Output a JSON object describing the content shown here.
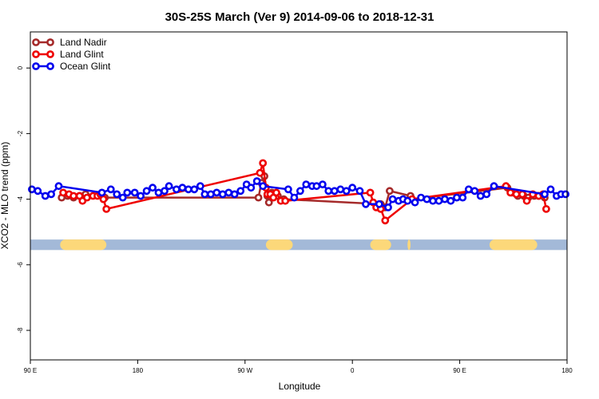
{
  "chart_data": {
    "type": "line",
    "title": "30S-25S March (Ver 9)   2014-09-06 to 2018-12-31",
    "xlabel": "Longitude",
    "ylabel": "XCO2 - MLO trend (ppm)",
    "xlim": [
      90,
      450
    ],
    "ylim": [
      -8.9,
      1.1
    ],
    "x_ticks": [
      {
        "value": 90,
        "label": "90 E"
      },
      {
        "value": 162,
        "label": "180"
      },
      {
        "value": 234,
        "label": "90 W"
      },
      {
        "value": 306,
        "label": "0"
      },
      {
        "value": 378,
        "label": "90 E"
      },
      {
        "value": 450,
        "label": "180"
      }
    ],
    "y_ticks": [
      {
        "value": 0,
        "label": "0"
      },
      {
        "value": -2,
        "label": "-2"
      },
      {
        "value": -4,
        "label": "-4"
      },
      {
        "value": -6,
        "label": "-6"
      },
      {
        "value": -8,
        "label": "-8"
      }
    ],
    "grid": false,
    "legend_position": "top-left",
    "land_band": {
      "y_range": [
        -5.55,
        -5.23
      ],
      "ocean_color": "#a3b9d8",
      "land_color": "#fcd87a",
      "land_segments": [
        [
          110,
          141
        ],
        [
          248,
          266
        ],
        [
          318,
          332
        ],
        [
          343,
          345
        ],
        [
          398,
          430
        ]
      ]
    },
    "series": [
      {
        "name": "Land Nadir",
        "color": "#a52a2a",
        "points": [
          [
            111,
            -3.95
          ],
          [
            115,
            -3.9
          ],
          [
            119,
            -3.95
          ],
          [
            123,
            -3.9
          ],
          [
            127,
            -3.85
          ],
          [
            140,
            -3.95
          ],
          [
            243,
            -3.95
          ],
          [
            245,
            -3.5
          ],
          [
            247,
            -3.3
          ],
          [
            249,
            -3.9
          ],
          [
            250,
            -4.1
          ],
          [
            252,
            -3.8
          ],
          [
            254,
            -3.85
          ],
          [
            256,
            -3.9
          ],
          [
            260,
            -4.0
          ],
          [
            325,
            -4.15
          ],
          [
            328,
            -4.25
          ],
          [
            331,
            -3.75
          ],
          [
            345,
            -3.9
          ],
          [
            346,
            -4.0
          ],
          [
            410,
            -3.65
          ],
          [
            413,
            -3.8
          ],
          [
            417,
            -3.9
          ],
          [
            421,
            -3.9
          ],
          [
            424,
            -3.95
          ],
          [
            428,
            -3.9
          ],
          [
            431,
            -3.9
          ],
          [
            435,
            -3.95
          ]
        ]
      },
      {
        "name": "Land Glint",
        "color": "#ee0000",
        "points": [
          [
            112,
            -3.8
          ],
          [
            116,
            -3.85
          ],
          [
            119,
            -3.9
          ],
          [
            123,
            -3.9
          ],
          [
            125,
            -4.05
          ],
          [
            128,
            -3.95
          ],
          [
            132,
            -3.9
          ],
          [
            135,
            -3.9
          ],
          [
            137,
            -3.85
          ],
          [
            139,
            -4.0
          ],
          [
            141,
            -4.3
          ],
          [
            244,
            -3.2
          ],
          [
            246,
            -2.9
          ],
          [
            248,
            -3.65
          ],
          [
            249,
            -3.85
          ],
          [
            251,
            -3.85
          ],
          [
            253,
            -3.95
          ],
          [
            255,
            -3.8
          ],
          [
            258,
            -4.05
          ],
          [
            261,
            -4.05
          ],
          [
            318,
            -3.8
          ],
          [
            320,
            -4.1
          ],
          [
            322,
            -4.25
          ],
          [
            325,
            -4.3
          ],
          [
            328,
            -4.65
          ],
          [
            346,
            -4.0
          ],
          [
            409,
            -3.6
          ],
          [
            412,
            -3.8
          ],
          [
            416,
            -3.85
          ],
          [
            420,
            -3.85
          ],
          [
            423,
            -4.05
          ],
          [
            427,
            -3.85
          ],
          [
            431,
            -3.9
          ],
          [
            434,
            -3.85
          ],
          [
            436,
            -4.3
          ]
        ]
      },
      {
        "name": "Ocean Glint",
        "color": "#0000ee",
        "points": [
          [
            91,
            -3.7
          ],
          [
            95,
            -3.75
          ],
          [
            100,
            -3.9
          ],
          [
            104,
            -3.85
          ],
          [
            109,
            -3.6
          ],
          [
            138,
            -3.8
          ],
          [
            144,
            -3.7
          ],
          [
            148,
            -3.85
          ],
          [
            152,
            -3.95
          ],
          [
            155,
            -3.8
          ],
          [
            160,
            -3.8
          ],
          [
            164,
            -3.9
          ],
          [
            168,
            -3.75
          ],
          [
            172,
            -3.65
          ],
          [
            176,
            -3.8
          ],
          [
            180,
            -3.75
          ],
          [
            183,
            -3.6
          ],
          [
            188,
            -3.7
          ],
          [
            192,
            -3.65
          ],
          [
            196,
            -3.7
          ],
          [
            200,
            -3.7
          ],
          [
            204,
            -3.6
          ],
          [
            207,
            -3.85
          ],
          [
            211,
            -3.85
          ],
          [
            215,
            -3.8
          ],
          [
            219,
            -3.85
          ],
          [
            223,
            -3.8
          ],
          [
            227,
            -3.85
          ],
          [
            231,
            -3.75
          ],
          [
            235,
            -3.55
          ],
          [
            238,
            -3.65
          ],
          [
            242,
            -3.45
          ],
          [
            246,
            -3.6
          ],
          [
            263,
            -3.7
          ],
          [
            267,
            -3.95
          ],
          [
            271,
            -3.75
          ],
          [
            275,
            -3.55
          ],
          [
            279,
            -3.6
          ],
          [
            282,
            -3.6
          ],
          [
            286,
            -3.55
          ],
          [
            290,
            -3.75
          ],
          [
            294,
            -3.75
          ],
          [
            298,
            -3.7
          ],
          [
            302,
            -3.75
          ],
          [
            306,
            -3.65
          ],
          [
            311,
            -3.75
          ],
          [
            315,
            -4.15
          ],
          [
            324,
            -4.15
          ],
          [
            330,
            -4.25
          ],
          [
            333,
            -4.0
          ],
          [
            337,
            -4.05
          ],
          [
            340,
            -4.0
          ],
          [
            343,
            -4.05
          ],
          [
            348,
            -4.1
          ],
          [
            352,
            -3.95
          ],
          [
            356,
            -4.0
          ],
          [
            360,
            -4.05
          ],
          [
            364,
            -4.05
          ],
          [
            368,
            -4.0
          ],
          [
            372,
            -4.05
          ],
          [
            376,
            -3.95
          ],
          [
            380,
            -3.95
          ],
          [
            384,
            -3.7
          ],
          [
            388,
            -3.75
          ],
          [
            392,
            -3.9
          ],
          [
            396,
            -3.85
          ],
          [
            401,
            -3.6
          ],
          [
            435,
            -3.85
          ],
          [
            439,
            -3.7
          ],
          [
            443,
            -3.9
          ],
          [
            446,
            -3.85
          ],
          [
            449,
            -3.85
          ]
        ]
      }
    ]
  }
}
